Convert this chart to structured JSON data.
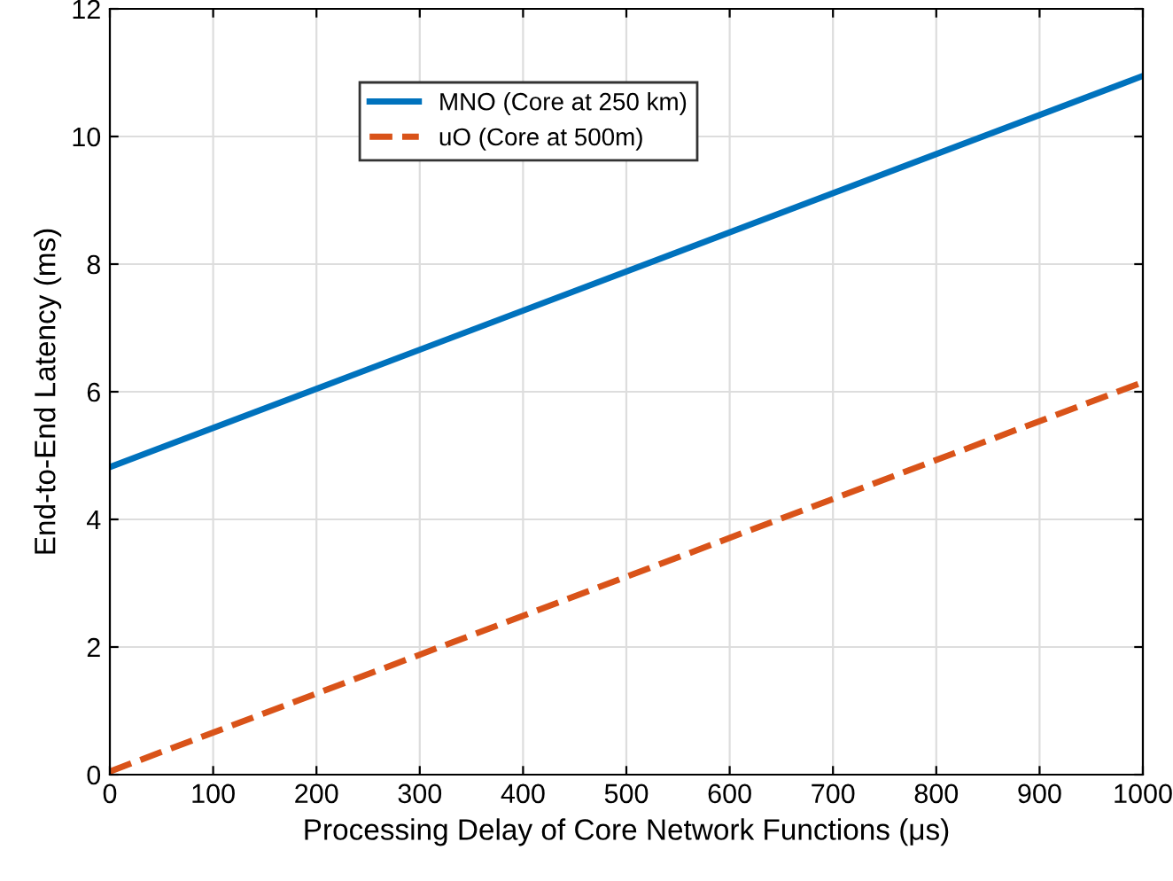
{
  "chart_data": {
    "type": "line",
    "xlabel": "Processing Delay of Core Network Functions (μs)",
    "ylabel": "End-to-End Latency (ms)",
    "xlim": [
      0,
      1000
    ],
    "ylim": [
      0,
      12
    ],
    "xticks": [
      0,
      100,
      200,
      300,
      400,
      500,
      600,
      700,
      800,
      900,
      1000
    ],
    "yticks": [
      0,
      2,
      4,
      6,
      8,
      10,
      12
    ],
    "grid": true,
    "legend": "top",
    "x": [
      0,
      1000
    ],
    "series": [
      {
        "name": "MNO (Core at 250 km)",
        "color": "#0072bd",
        "values": [
          4.82,
          10.95
        ],
        "line_style": "solid"
      },
      {
        "name": "uO (Core at 500m)",
        "color": "#d95319",
        "values": [
          0.05,
          6.15
        ],
        "line_style": "dashed"
      }
    ]
  }
}
